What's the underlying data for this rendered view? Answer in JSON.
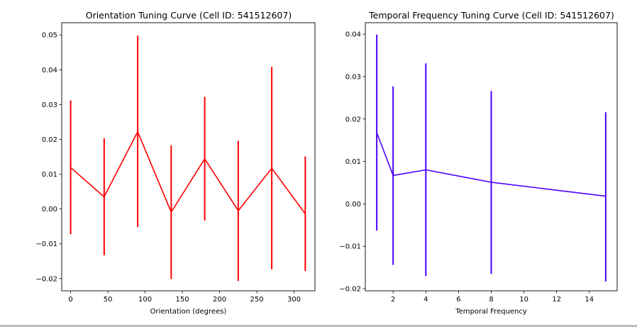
{
  "chart_data": [
    {
      "type": "line",
      "title": "Orientation Tuning Curve (Cell ID: 541512607)",
      "xlabel": "Orientation (degrees)",
      "ylabel": "",
      "xlim": [
        -12,
        328
      ],
      "ylim": [
        -0.0235,
        0.0535
      ],
      "xticks": [
        0,
        50,
        100,
        150,
        200,
        250,
        300
      ],
      "xtick_labels": [
        "0",
        "50",
        "100",
        "150",
        "200",
        "250",
        "300"
      ],
      "yticks": [
        -0.02,
        -0.01,
        0.0,
        0.01,
        0.02,
        0.03,
        0.04,
        0.05
      ],
      "ytick_labels": [
        "−0.02",
        "−0.01",
        "0.00",
        "0.01",
        "0.02",
        "0.03",
        "0.04",
        "0.05"
      ],
      "grid": false,
      "color": "#ff0000",
      "series": [
        {
          "x": [
            0,
            45,
            90,
            135,
            180,
            225,
            270,
            315
          ],
          "y": [
            0.0119,
            0.0035,
            0.0222,
            -0.0009,
            0.0144,
            -0.0005,
            0.0117,
            -0.0014
          ],
          "err_low": [
            -0.0072,
            -0.0133,
            -0.0052,
            -0.0201,
            -0.0033,
            -0.0207,
            -0.0173,
            -0.0178
          ],
          "err_high": [
            0.0312,
            0.0203,
            0.0498,
            0.0183,
            0.0322,
            0.0196,
            0.0408,
            0.0151
          ]
        }
      ]
    },
    {
      "type": "line",
      "title": "Temporal Frequency Tuning Curve (Cell ID: 541512607)",
      "xlabel": "Temporal Frequency",
      "ylabel": "",
      "xlim": [
        0.3,
        15.7
      ],
      "ylim": [
        -0.0205,
        0.0427
      ],
      "xticks": [
        2,
        4,
        6,
        8,
        10,
        12,
        14
      ],
      "xtick_labels": [
        "2",
        "4",
        "6",
        "8",
        "10",
        "12",
        "14"
      ],
      "yticks": [
        -0.02,
        -0.01,
        0.0,
        0.01,
        0.02,
        0.03,
        0.04
      ],
      "ytick_labels": [
        "−0.02",
        "−0.01",
        "0.00",
        "0.01",
        "0.02",
        "0.03",
        "0.04"
      ],
      "grid": false,
      "color": "#4b00ff",
      "series": [
        {
          "x": [
            1,
            2,
            4,
            8,
            15
          ],
          "y": [
            0.0168,
            0.0067,
            0.008,
            0.0051,
            0.0018
          ],
          "err_low": [
            -0.0063,
            -0.0144,
            -0.017,
            -0.0165,
            -0.0183
          ],
          "err_high": [
            0.0399,
            0.0277,
            0.0331,
            0.0266,
            0.0216
          ]
        }
      ]
    }
  ]
}
